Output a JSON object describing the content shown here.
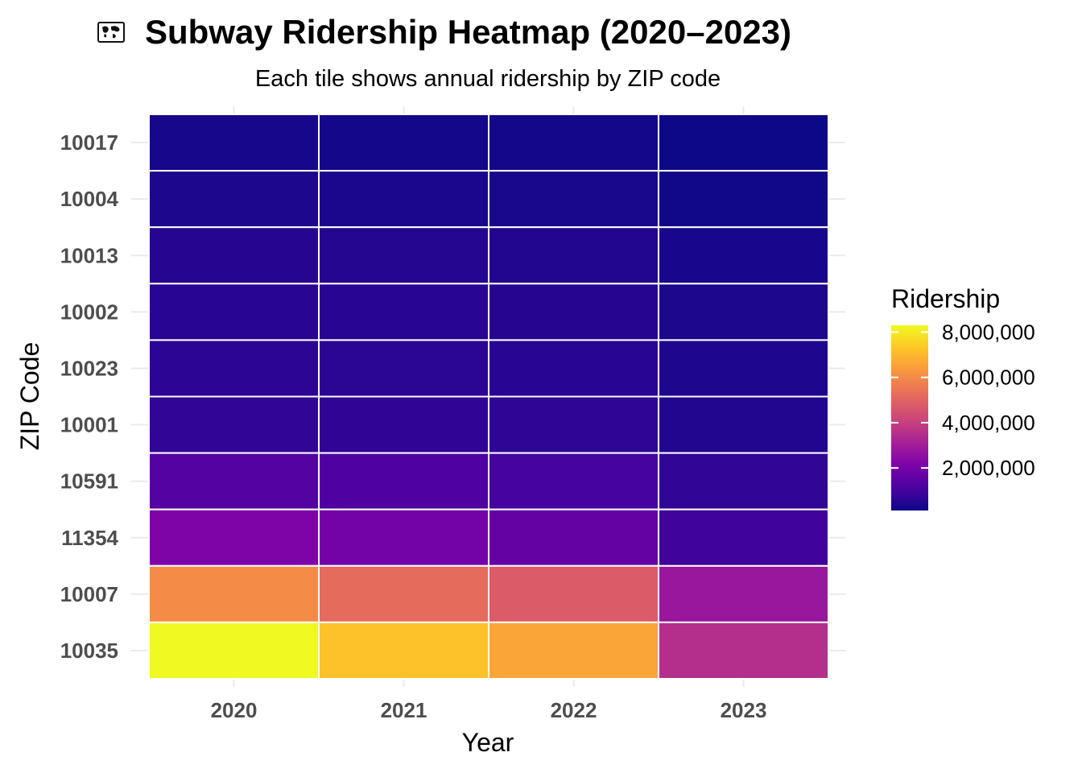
{
  "chart_data": {
    "type": "heatmap",
    "title": "Subway Ridership Heatmap (2020–2023)",
    "title_icon": "world-map-icon",
    "subtitle": "Each tile shows annual ridership by ZIP code",
    "xlabel": "Year",
    "ylabel": "ZIP Code",
    "x": [
      "2020",
      "2021",
      "2022",
      "2023"
    ],
    "y": [
      "10017",
      "10004",
      "10013",
      "10002",
      "10023",
      "10001",
      "10591",
      "11354",
      "10007",
      "10035"
    ],
    "values": [
      [
        260000,
        240000,
        230000,
        120000
      ],
      [
        360000,
        340000,
        320000,
        180000
      ],
      [
        520000,
        500000,
        470000,
        300000
      ],
      [
        580000,
        560000,
        530000,
        360000
      ],
      [
        620000,
        600000,
        580000,
        420000
      ],
      [
        700000,
        680000,
        650000,
        460000
      ],
      [
        1300000,
        1200000,
        1050000,
        700000
      ],
      [
        2200000,
        1950000,
        1650000,
        950000
      ],
      [
        6000000,
        5200000,
        4800000,
        2800000
      ],
      [
        8300000,
        7200000,
        6600000,
        3500000
      ]
    ],
    "colorscale": "plasma",
    "legend": {
      "title": "Ridership",
      "position": "right",
      "min": 120000,
      "max": 8300000,
      "ticks": [
        2000000,
        4000000,
        6000000,
        8000000
      ],
      "tick_labels": [
        "2,000,000",
        "4,000,000",
        "6,000,000",
        "8,000,000"
      ]
    },
    "grid": true
  }
}
